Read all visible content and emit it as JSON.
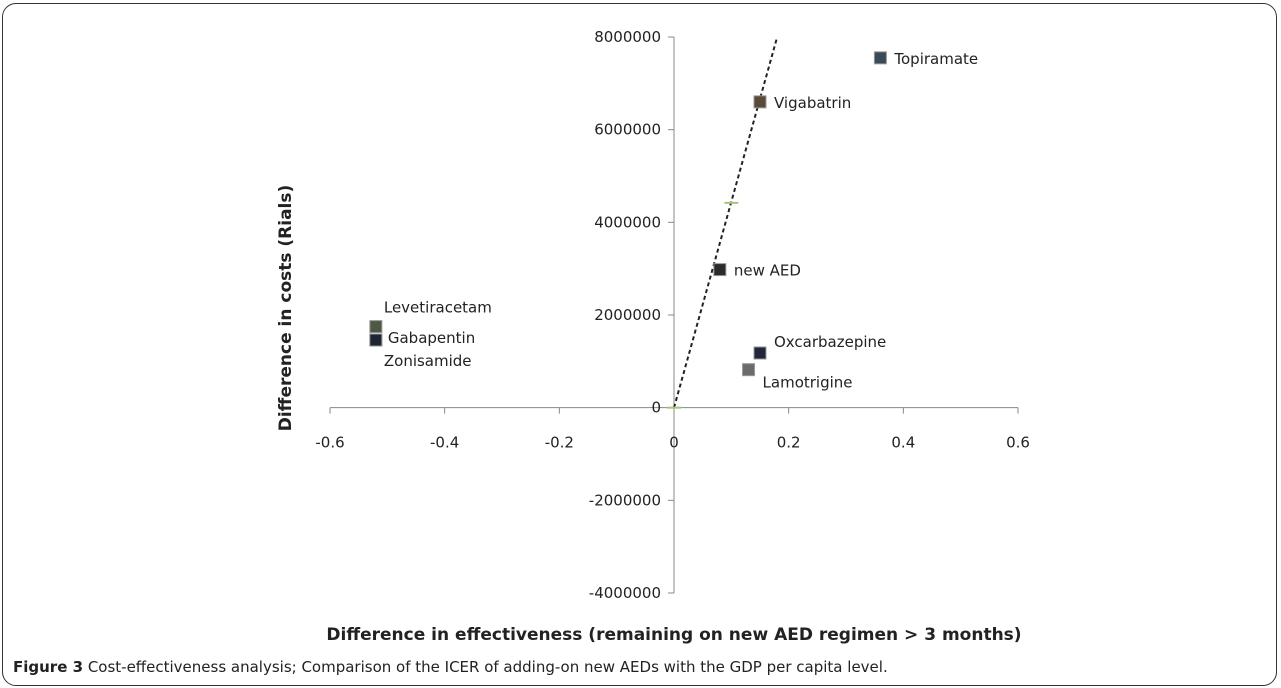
{
  "figure": {
    "caption_label": "Figure 3",
    "caption_text": " Cost-effectiveness analysis; Comparison of the ICER of adding-on new AEDs with the GDP per capita level."
  },
  "chart_data": {
    "type": "scatter",
    "xlabel": "Difference in effectiveness (remaining on new AED regimen > 3 months)",
    "ylabel": "Difference in costs (Rials)",
    "xlim": [
      -0.6,
      0.6
    ],
    "ylim": [
      -4000000,
      8000000
    ],
    "x_ticks": [
      "-0.6",
      "-0.4",
      "-0.2",
      "0",
      "0.2",
      "0.4",
      "0.6"
    ],
    "y_ticks": [
      "8000000",
      "6000000",
      "4000000",
      "2000000",
      "0",
      "-2000000",
      "-4000000"
    ],
    "grid": false,
    "legend": "none",
    "points": [
      {
        "label": "Topiramate",
        "x": 0.36,
        "y": 7550000,
        "color": "#3b4a55"
      },
      {
        "label": "Vigabatrin",
        "x": 0.15,
        "y": 6600000,
        "color": "#5a4a3a"
      },
      {
        "label": "new AED",
        "x": 0.08,
        "y": 2980000,
        "color": "#2b2b2b"
      },
      {
        "label": "Levetiracetam",
        "x": -0.52,
        "y": 1750000,
        "color": "#4c5a45"
      },
      {
        "label": "Gabapentin",
        "x": -0.52,
        "y": 1460000,
        "color": "#1e2533"
      },
      {
        "label": "Zonisamide",
        "x": -0.52,
        "y": 1460000,
        "color": "#1e2533"
      },
      {
        "label": "Oxcarbazepine",
        "x": 0.15,
        "y": 1180000,
        "color": "#22263a"
      },
      {
        "label": "Lamotrigine",
        "x": 0.13,
        "y": 820000,
        "color": "#6b6b6b"
      }
    ],
    "threshold_line": {
      "x": [
        0,
        0.18
      ],
      "y": [
        0,
        8000000
      ],
      "style": "dashed",
      "color": "#222222"
    },
    "threshold_marks": [
      {
        "x": 0.1,
        "y": 4420000,
        "color": "#a6c47a"
      },
      {
        "x": 0,
        "y": 0,
        "color": "#a6c47a"
      }
    ]
  }
}
